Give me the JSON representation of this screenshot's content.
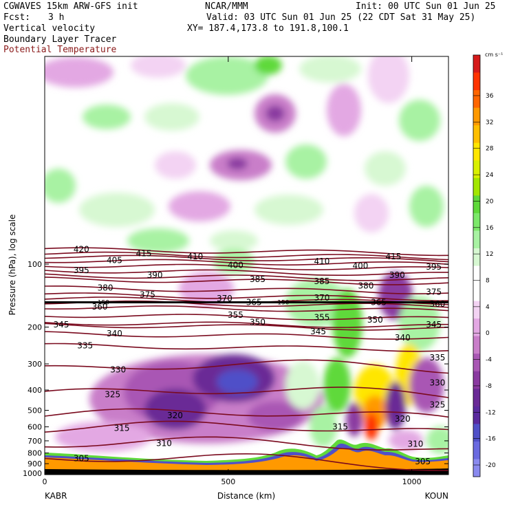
{
  "header": {
    "line1_left": "CGWAVES 15km ARW-GFS init",
    "line1_center": "NCAR/MMM",
    "line1_right": "Init: 00 UTC Sun 01 Jun 25",
    "fcst_label": "Fcst:",
    "fcst_value": "3 h",
    "valid": "Valid: 03 UTC Sun 01 Jun 25 (22 CDT Sat 31 May 25)",
    "xy": "XY= 187.4,173.8 to 191.8,100.1",
    "field1": "Vertical velocity",
    "field2": "Boundary Layer Tracer",
    "field3": "Potential Temperature"
  },
  "colors": {
    "theta_contour": "#7a0a1e",
    "tracer_line": "#000000",
    "ground_fill": "#ff9900"
  },
  "chart_data": {
    "type": "heatmap",
    "xlabel": "Distance (km)",
    "ylabel": "Pressure (hPa), log scale",
    "x_ticks": [
      0,
      500,
      1000
    ],
    "xlim": [
      0,
      1100
    ],
    "y_ticks": [
      100,
      200,
      300,
      400,
      500,
      600,
      700,
      800,
      900,
      1000
    ],
    "y_scale": "log",
    "left_endpoint": "KABR",
    "right_endpoint": "KOUN",
    "tracer_label": "150",
    "colorbar": {
      "unit": "cm s⁻¹",
      "labels": [
        36,
        32,
        28,
        24,
        20,
        16,
        12,
        8,
        4,
        0,
        -4,
        -8,
        -12,
        -16,
        -20
      ],
      "colors": [
        "#d61a1a",
        "#ff3300",
        "#ff6600",
        "#ff9900",
        "#ffbf00",
        "#ffe600",
        "#d9f000",
        "#a3e600",
        "#5fd93a",
        "#7ce86a",
        "#a8f2a3",
        "#d7f8d2",
        "#ffffff",
        "#ffffff",
        "#f3d3f3",
        "#e3a8e3",
        "#c97ec9",
        "#a957b4",
        "#8a3aa0",
        "#6a2a96",
        "#5a2a9e",
        "#5050c8",
        "#6a6ae0",
        "#8a8aef"
      ]
    },
    "theta_levels": [
      {
        "label": "305",
        "x": 100,
        "p": 850
      },
      {
        "label": "310",
        "x": 325,
        "p": 720
      },
      {
        "label": "315",
        "x": 210,
        "p": 610
      },
      {
        "label": "320",
        "x": 355,
        "p": 530
      },
      {
        "label": "325",
        "x": 185,
        "p": 420
      },
      {
        "label": "330",
        "x": 200,
        "p": 320
      },
      {
        "label": "335",
        "x": 110,
        "p": 245
      },
      {
        "label": "340",
        "x": 190,
        "p": 215
      },
      {
        "label": "345",
        "x": 45,
        "p": 195
      },
      {
        "label": "350",
        "x": 580,
        "p": 190
      },
      {
        "label": "355",
        "x": 520,
        "p": 175
      },
      {
        "label": "360",
        "x": 150,
        "p": 160
      },
      {
        "label": "365",
        "x": 570,
        "p": 152
      },
      {
        "label": "370",
        "x": 490,
        "p": 146
      },
      {
        "label": "375",
        "x": 280,
        "p": 140
      },
      {
        "label": "380",
        "x": 165,
        "p": 130
      },
      {
        "label": "385",
        "x": 580,
        "p": 118
      },
      {
        "label": "390",
        "x": 300,
        "p": 113
      },
      {
        "label": "395",
        "x": 100,
        "p": 107
      },
      {
        "label": "400",
        "x": 520,
        "p": 101
      },
      {
        "label": "405",
        "x": 190,
        "p": 96
      },
      {
        "label": "410",
        "x": 410,
        "p": 92
      },
      {
        "label": "415",
        "x": 270,
        "p": 89
      },
      {
        "label": "420",
        "x": 100,
        "p": 85
      }
    ],
    "theta_labels_extra": [
      {
        "label": "305",
        "x": 1030,
        "p": 880
      },
      {
        "label": "310",
        "x": 1010,
        "p": 725
      },
      {
        "label": "315",
        "x": 805,
        "p": 600
      },
      {
        "label": "320",
        "x": 975,
        "p": 550
      },
      {
        "label": "325",
        "x": 1070,
        "p": 470
      },
      {
        "label": "330",
        "x": 1070,
        "p": 370
      },
      {
        "label": "335",
        "x": 1070,
        "p": 280
      },
      {
        "label": "340",
        "x": 975,
        "p": 225
      },
      {
        "label": "345",
        "x": 745,
        "p": 210
      },
      {
        "label": "345",
        "x": 1060,
        "p": 195
      },
      {
        "label": "350",
        "x": 900,
        "p": 185
      },
      {
        "label": "355",
        "x": 755,
        "p": 180
      },
      {
        "label": "360",
        "x": 1070,
        "p": 155
      },
      {
        "label": "365",
        "x": 910,
        "p": 152
      },
      {
        "label": "370",
        "x": 755,
        "p": 145
      },
      {
        "label": "375",
        "x": 1060,
        "p": 136
      },
      {
        "label": "380",
        "x": 875,
        "p": 127
      },
      {
        "label": "385",
        "x": 755,
        "p": 121
      },
      {
        "label": "390",
        "x": 960,
        "p": 113
      },
      {
        "label": "395",
        "x": 1060,
        "p": 103
      },
      {
        "label": "400",
        "x": 860,
        "p": 102
      },
      {
        "label": "410",
        "x": 755,
        "p": 97
      },
      {
        "label": "415",
        "x": 950,
        "p": 92
      }
    ],
    "tracer_label_positions": [
      {
        "x": 160,
        "p": 150
      },
      {
        "x": 650,
        "p": 150
      }
    ]
  }
}
